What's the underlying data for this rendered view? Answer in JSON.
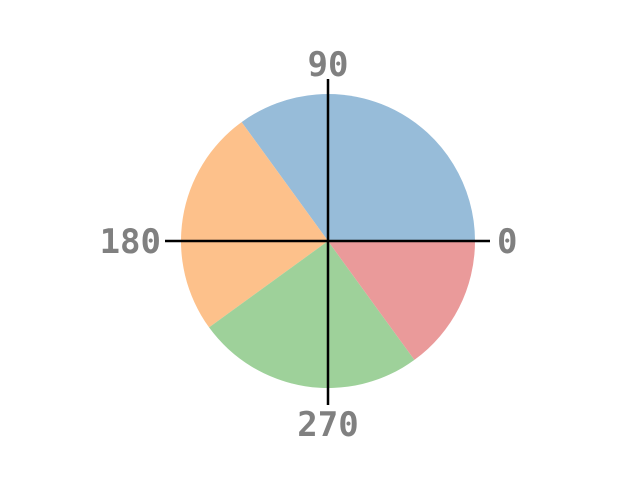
{
  "chart_data": {
    "type": "pie",
    "values": [
      35,
      25,
      25,
      15
    ],
    "colors": [
      "#97bcd9",
      "#fdc18b",
      "#9ed19a",
      "#ea9a9a"
    ],
    "start_angle_deg": 0,
    "direction": "counterclockwise",
    "axis_labels": [
      "0",
      "90",
      "180",
      "270"
    ],
    "axis_color": "#000000",
    "label_color": "#808080"
  }
}
